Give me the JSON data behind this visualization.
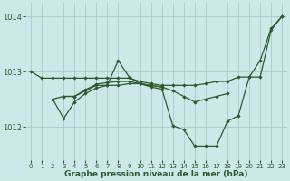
{
  "xlabel": "Graphe pression niveau de la mer (hPa)",
  "background_color": "#cce8e8",
  "grid_color": "#a8cccc",
  "line_color": "#2d5a2d",
  "xlim": [
    -0.5,
    23.5
  ],
  "ylim": [
    1011.4,
    1014.25
  ],
  "yticks": [
    1012,
    1013,
    1014
  ],
  "xticks": [
    0,
    1,
    2,
    3,
    4,
    5,
    6,
    7,
    8,
    9,
    10,
    11,
    12,
    13,
    14,
    15,
    16,
    17,
    18,
    19,
    20,
    21,
    22,
    23
  ],
  "line1_x": [
    0,
    1,
    2,
    3,
    4,
    5,
    6,
    7,
    8,
    9,
    10,
    11,
    12,
    13,
    14,
    15,
    16,
    17,
    18,
    19,
    20,
    21,
    22,
    23
  ],
  "line1_y": [
    1013.0,
    1012.88,
    1012.88,
    1012.88,
    1012.88,
    1012.88,
    1012.88,
    1012.88,
    1012.88,
    1012.88,
    1012.82,
    1012.78,
    1012.75,
    1012.75,
    1012.75,
    1012.75,
    1012.78,
    1012.82,
    1012.82,
    1012.9,
    1012.9,
    1012.9,
    1013.75,
    1014.0
  ],
  "line2_x": [
    2,
    3,
    4,
    5,
    6,
    7,
    8,
    9,
    10,
    11,
    12,
    13,
    14,
    15,
    16,
    17,
    18,
    19,
    20,
    21,
    22,
    23
  ],
  "line2_y": [
    1012.5,
    1012.15,
    1012.45,
    1012.6,
    1012.7,
    1012.75,
    1013.2,
    1012.9,
    1012.78,
    1012.72,
    1012.68,
    1012.02,
    1011.95,
    1011.65,
    1011.65,
    1011.65,
    1012.1,
    1012.2,
    1012.9,
    1013.2,
    1013.78,
    1014.0
  ],
  "line3_x": [
    2,
    3,
    4,
    5,
    6,
    7,
    8,
    9,
    10,
    11,
    12
  ],
  "line3_y": [
    1012.5,
    1012.55,
    1012.55,
    1012.65,
    1012.75,
    1012.75,
    1012.75,
    1012.78,
    1012.78,
    1012.75,
    1012.72
  ],
  "line4_x": [
    3,
    4,
    5,
    6,
    7,
    8,
    9,
    10,
    11,
    12,
    13,
    14,
    15,
    16,
    17,
    18
  ],
  "line4_y": [
    1012.55,
    1012.55,
    1012.67,
    1012.77,
    1012.8,
    1012.82,
    1012.82,
    1012.78,
    1012.75,
    1012.72,
    1012.65,
    1012.55,
    1012.45,
    1012.5,
    1012.55,
    1012.6
  ]
}
